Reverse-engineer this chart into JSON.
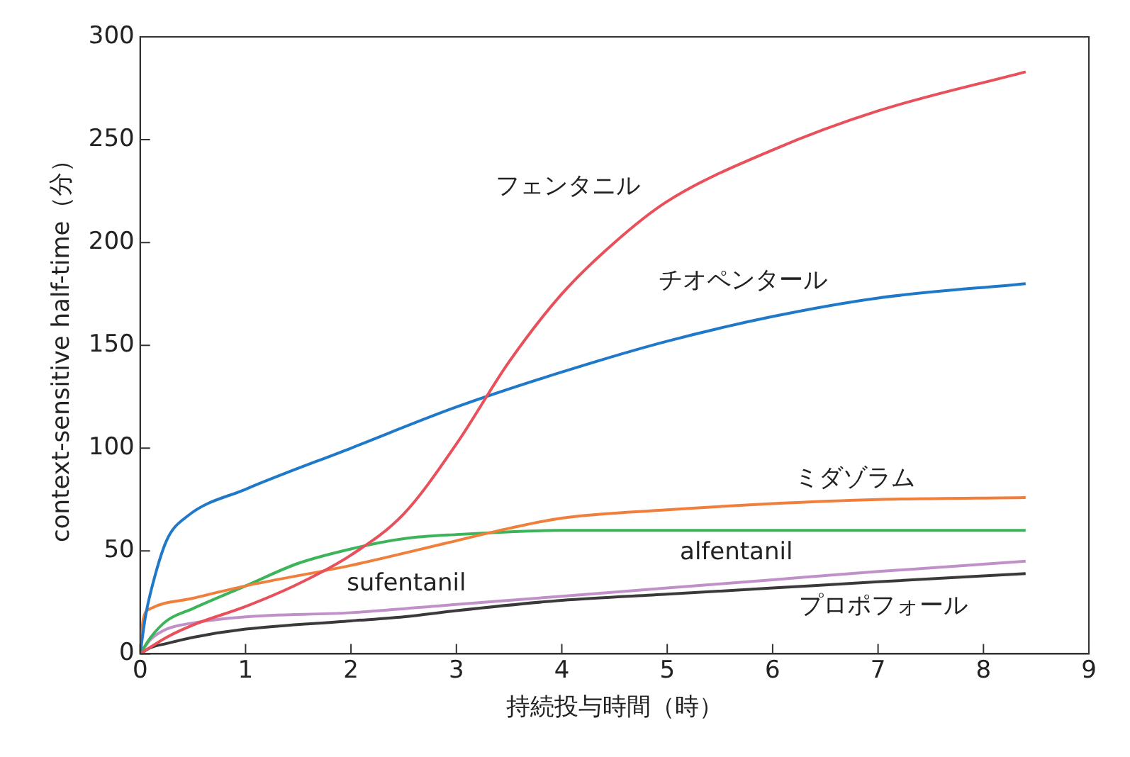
{
  "chart_data": {
    "type": "line",
    "xlabel": "持続投与時間（時）",
    "ylabel": "context-sensitive half-time（分）",
    "xlim": [
      0,
      9
    ],
    "xticks": [
      0,
      1,
      2,
      3,
      4,
      5,
      6,
      7,
      8,
      9
    ],
    "ylim": [
      0,
      300
    ],
    "yticks": [
      0,
      50,
      100,
      150,
      200,
      250,
      300
    ],
    "grid": false,
    "legend": false,
    "marker": "none",
    "line_style": "solid",
    "series": [
      {
        "name": "フェンタニル",
        "color": "#e8505b",
        "x": [
          0,
          0.25,
          0.5,
          1,
          1.5,
          2,
          2.5,
          3,
          3.5,
          4,
          4.5,
          5,
          6,
          7,
          8.4
        ],
        "values": [
          0,
          8,
          14,
          23,
          34,
          48,
          68,
          102,
          142,
          175,
          200,
          220,
          245,
          264,
          283
        ]
      },
      {
        "name": "チオペンタール",
        "color": "#1f78c8",
        "x": [
          0,
          0.05,
          0.1,
          0.25,
          0.45,
          1,
          2,
          3,
          4,
          5,
          6,
          7,
          8.4
        ],
        "values": [
          0,
          18,
          30,
          55,
          67,
          80,
          100,
          120,
          137,
          152,
          164,
          173,
          180
        ]
      },
      {
        "name": "ミダゾラム",
        "color": "#f07f3c",
        "x": [
          0,
          0.03,
          0.1,
          0.5,
          1,
          2,
          3,
          3.5,
          4,
          5,
          6,
          7,
          8.4
        ],
        "values": [
          0,
          17,
          22,
          27,
          33,
          43,
          55,
          61,
          66,
          70,
          73,
          75,
          76
        ]
      },
      {
        "name": "alfentanil",
        "color": "#3cb45a",
        "x": [
          0,
          0.1,
          0.25,
          0.5,
          1,
          1.5,
          2,
          2.5,
          3,
          4,
          5,
          8.4
        ],
        "values": [
          0,
          8,
          16,
          22,
          33,
          44,
          51,
          56,
          58,
          60,
          60,
          60
        ]
      },
      {
        "name": "sufentanil",
        "color": "#c090c8",
        "x": [
          0,
          0.1,
          0.25,
          0.5,
          1,
          2,
          3,
          4,
          5,
          6,
          7,
          8.4
        ],
        "values": [
          0,
          7,
          12,
          15,
          18,
          20,
          24,
          28,
          32,
          36,
          40,
          45
        ]
      },
      {
        "name": "プロポフォール",
        "color": "#3a3a3a",
        "x": [
          0,
          0.1,
          0.25,
          0.5,
          1,
          2,
          2.5,
          3,
          4,
          5,
          6,
          7,
          8.4
        ],
        "values": [
          0,
          3,
          5,
          8,
          12,
          16,
          18,
          21,
          26,
          29,
          32,
          35,
          39
        ]
      }
    ]
  }
}
